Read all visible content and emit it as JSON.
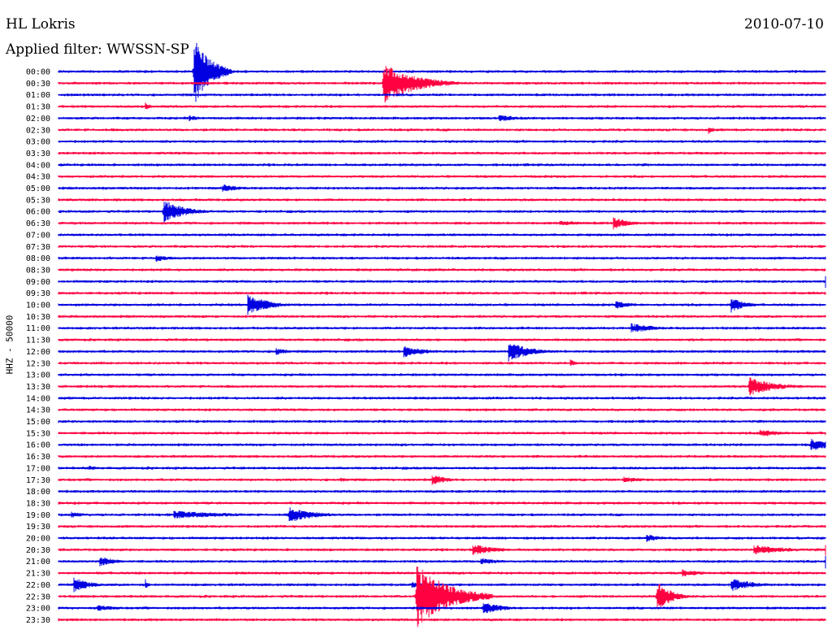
{
  "header": {
    "station": "HL Lokris",
    "date": "2010-07-10",
    "filter": "Applied filter: WWSSN-SP"
  },
  "colors": {
    "odd": "#0000e0",
    "even": "#ff0040"
  },
  "chart_data": {
    "type": "line",
    "ylabel": "HHZ - 50000",
    "trace_labels": [
      "00:00",
      "00:30",
      "01:00",
      "01:30",
      "02:00",
      "02:30",
      "03:00",
      "03:30",
      "04:00",
      "04:30",
      "05:00",
      "05:30",
      "06:00",
      "06:30",
      "07:00",
      "07:30",
      "08:00",
      "08:30",
      "09:00",
      "09:30",
      "10:00",
      "10:30",
      "11:00",
      "11:30",
      "12:00",
      "12:30",
      "13:00",
      "13:30",
      "14:00",
      "14:30",
      "15:00",
      "15:30",
      "16:00",
      "16:30",
      "17:00",
      "17:30",
      "18:00",
      "18:30",
      "19:00",
      "19:30",
      "20:00",
      "20:30",
      "21:00",
      "21:30",
      "22:00",
      "22:30",
      "23:00",
      "23:30"
    ],
    "minutes_per_line": 30,
    "events": [
      {
        "line": 0,
        "minute": 5.3,
        "amplitude": 45,
        "duration": 0.6
      },
      {
        "line": 1,
        "minute": 12.7,
        "amplitude": 26,
        "duration": 1.2
      },
      {
        "line": 3,
        "minute": 3.4,
        "amplitude": 5,
        "duration": 0.2
      },
      {
        "line": 4,
        "minute": 5.1,
        "amplitude": 4,
        "duration": 0.5
      },
      {
        "line": 4,
        "minute": 17.2,
        "amplitude": 4,
        "duration": 1.2
      },
      {
        "line": 5,
        "minute": 25.4,
        "amplitude": 6,
        "duration": 0.2
      },
      {
        "line": 10,
        "minute": 6.4,
        "amplitude": 5,
        "duration": 0.8
      },
      {
        "line": 12,
        "minute": 4.1,
        "amplitude": 15,
        "duration": 0.8
      },
      {
        "line": 13,
        "minute": 19.6,
        "amplitude": 3,
        "duration": 1.5
      },
      {
        "line": 13,
        "minute": 21.7,
        "amplitude": 8,
        "duration": 0.6
      },
      {
        "line": 16,
        "minute": 3.8,
        "amplitude": 5,
        "duration": 0.5
      },
      {
        "line": 18,
        "minute": 30.0,
        "amplitude": 8,
        "duration": 1.0
      },
      {
        "line": 20,
        "minute": 7.4,
        "amplitude": 13,
        "duration": 0.8
      },
      {
        "line": 20,
        "minute": 21.8,
        "amplitude": 5,
        "duration": 0.7
      },
      {
        "line": 20,
        "minute": 26.3,
        "amplitude": 11,
        "duration": 0.5
      },
      {
        "line": 22,
        "minute": 22.4,
        "amplitude": 6,
        "duration": 1.0
      },
      {
        "line": 24,
        "minute": 8.5,
        "amplitude": 5,
        "duration": 0.6
      },
      {
        "line": 24,
        "minute": 13.5,
        "amplitude": 8,
        "duration": 0.8
      },
      {
        "line": 24,
        "minute": 17.6,
        "amplitude": 13,
        "duration": 0.8
      },
      {
        "line": 25,
        "minute": 20.0,
        "amplitude": 5,
        "duration": 0.3
      },
      {
        "line": 27,
        "minute": 27.0,
        "amplitude": 12,
        "duration": 1.0
      },
      {
        "line": 31,
        "minute": 27.4,
        "amplitude": 5,
        "duration": 1.0
      },
      {
        "line": 31,
        "minute": 30.0,
        "amplitude": 3,
        "duration": 0.8
      },
      {
        "line": 32,
        "minute": 29.4,
        "amplitude": 8,
        "duration": 1.0
      },
      {
        "line": 34,
        "minute": 1.2,
        "amplitude": 4,
        "duration": 0.3
      },
      {
        "line": 35,
        "minute": 11.0,
        "amplitude": 3,
        "duration": 0.8
      },
      {
        "line": 35,
        "minute": 14.6,
        "amplitude": 7,
        "duration": 0.6
      },
      {
        "line": 35,
        "minute": 22.1,
        "amplitude": 4,
        "duration": 1.0
      },
      {
        "line": 38,
        "minute": 0.5,
        "amplitude": 4,
        "duration": 0.6
      },
      {
        "line": 38,
        "minute": 4.5,
        "amplitude": 5,
        "duration": 2.5
      },
      {
        "line": 38,
        "minute": 9.0,
        "amplitude": 10,
        "duration": 1.0
      },
      {
        "line": 40,
        "minute": 23.0,
        "amplitude": 5,
        "duration": 0.6
      },
      {
        "line": 41,
        "minute": 16.2,
        "amplitude": 7,
        "duration": 1.0
      },
      {
        "line": 41,
        "minute": 27.2,
        "amplitude": 6,
        "duration": 1.5
      },
      {
        "line": 41,
        "minute": 30.0,
        "amplitude": 8,
        "duration": 0.5
      },
      {
        "line": 42,
        "minute": 1.6,
        "amplitude": 7,
        "duration": 0.6
      },
      {
        "line": 42,
        "minute": 16.5,
        "amplitude": 4,
        "duration": 1.0
      },
      {
        "line": 42,
        "minute": 30.0,
        "amplitude": 9,
        "duration": 0.6
      },
      {
        "line": 43,
        "minute": 24.4,
        "amplitude": 5,
        "duration": 0.8
      },
      {
        "line": 44,
        "minute": 0.6,
        "amplitude": 10,
        "duration": 0.6
      },
      {
        "line": 44,
        "minute": 3.4,
        "amplitude": 7,
        "duration": 0.1
      },
      {
        "line": 44,
        "minute": 13.8,
        "amplitude": 4,
        "duration": 1.0
      },
      {
        "line": 44,
        "minute": 26.3,
        "amplitude": 9,
        "duration": 0.8
      },
      {
        "line": 45,
        "minute": 14.0,
        "amplitude": 40,
        "duration": 1.2
      },
      {
        "line": 45,
        "minute": 23.4,
        "amplitude": 22,
        "duration": 0.5
      },
      {
        "line": 46,
        "minute": 1.5,
        "amplitude": 4,
        "duration": 1.0
      },
      {
        "line": 46,
        "minute": 16.6,
        "amplitude": 8,
        "duration": 0.8
      }
    ]
  }
}
